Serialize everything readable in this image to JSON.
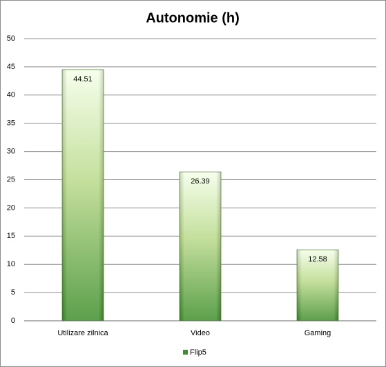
{
  "chart_data": {
    "type": "bar",
    "title": "Autonomie (h)",
    "categories": [
      "Utilizare zilnica",
      "Video",
      "Gaming"
    ],
    "series": [
      {
        "name": "Flip5",
        "color": "#3f8f2c",
        "values": [
          44.51,
          26.39,
          12.58
        ]
      }
    ],
    "ylim": [
      0,
      50
    ],
    "yticks": [
      0,
      5,
      10,
      15,
      20,
      25,
      30,
      35,
      40,
      45,
      50
    ],
    "grid": true,
    "legend": "bottom",
    "data_labels": true
  }
}
